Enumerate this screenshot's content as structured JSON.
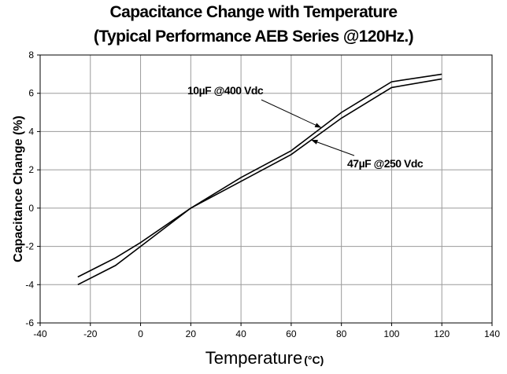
{
  "chart_data": {
    "type": "line",
    "title": "Capacitance Change with Temperature",
    "subtitle": "(Typical Performance AEB Series @120Hz.)",
    "xlabel": "Temperature",
    "xunit": "(°C)",
    "ylabel": "Capacitance Change (%)",
    "xlim": [
      -40,
      140
    ],
    "ylim": [
      -6,
      8
    ],
    "xticks": [
      -40,
      -20,
      0,
      20,
      40,
      60,
      80,
      100,
      120,
      140
    ],
    "yticks": [
      -6,
      -4,
      -2,
      0,
      2,
      4,
      6,
      8
    ],
    "grid": true,
    "series": [
      {
        "name": "10µF @400 Vdc",
        "x": [
          -25,
          -10,
          0,
          20,
          40,
          60,
          80,
          100,
          120
        ],
        "y": [
          -3.6,
          -2.6,
          -1.8,
          0,
          1.6,
          3.0,
          5.0,
          6.6,
          7.0
        ]
      },
      {
        "name": "47µF @250 Vdc",
        "x": [
          -25,
          -10,
          0,
          20,
          40,
          60,
          80,
          100,
          120
        ],
        "y": [
          -4.0,
          -3.0,
          -2.0,
          0,
          1.4,
          2.8,
          4.7,
          6.3,
          6.75
        ]
      }
    ],
    "annotations": [
      {
        "text": "10µF @400 Vdc",
        "series": 0,
        "x": 72
      },
      {
        "text": "47µF @250 Vdc",
        "series": 1,
        "x": 68
      }
    ]
  }
}
